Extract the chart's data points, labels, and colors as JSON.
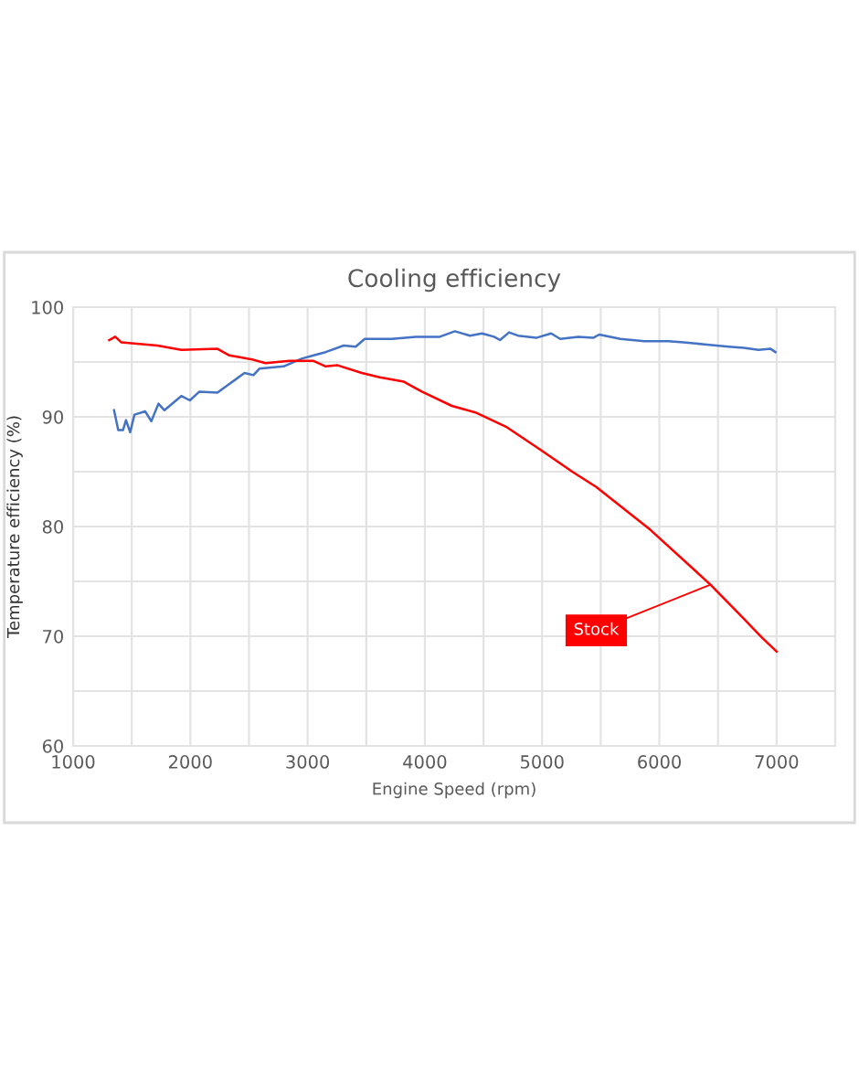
{
  "chart_data": {
    "type": "line",
    "title": "Cooling efficiency",
    "xlabel": "Engine Speed (rpm)",
    "ylabel": "Temperature efficiency (%)",
    "xlim": [
      1000,
      7500
    ],
    "ylim": [
      60,
      100
    ],
    "xticks": [
      1000,
      {
        "value": 1500,
        "label": null
      },
      2000,
      {
        "value": 2500,
        "label": null
      },
      3000,
      {
        "value": 3500,
        "label": null
      },
      4000,
      {
        "value": 4500,
        "label": null
      },
      5000,
      {
        "value": 5500,
        "label": null
      },
      6000,
      {
        "value": 6500,
        "label": null
      },
      7000,
      {
        "value": 7500,
        "label": null
      }
    ],
    "yticks": [
      60,
      {
        "value": 65,
        "label": null
      },
      70,
      {
        "value": 75,
        "label": null
      },
      80,
      {
        "value": 85,
        "label": null
      },
      90,
      {
        "value": 95,
        "label": null
      },
      100
    ],
    "grid": true,
    "legend": false,
    "marker": "none",
    "line_style": "solid",
    "series": [
      {
        "color": "#4472c4",
        "x": [
          1349,
          1385,
          1426,
          1451,
          1487,
          1523,
          1615,
          1667,
          1728,
          1779,
          1923,
          1996,
          2077,
          2231,
          2333,
          2462,
          2538,
          2590,
          2795,
          2949,
          3051,
          3154,
          3308,
          3410,
          3487,
          3718,
          3923,
          4128,
          4256,
          4385,
          4487,
          4590,
          4641,
          4718,
          4795,
          4949,
          5077,
          5154,
          5308,
          5436,
          5487,
          5667,
          5872,
          6077,
          6205,
          6385,
          6590,
          6718,
          6846,
          6949,
          6990
        ],
        "values": [
          90.6,
          88.8,
          88.8,
          89.7,
          88.6,
          90.2,
          90.5,
          89.6,
          91.2,
          90.6,
          91.9,
          91.5,
          92.3,
          92.2,
          93.0,
          94.0,
          93.8,
          94.4,
          94.6,
          95.3,
          95.6,
          95.9,
          96.5,
          96.4,
          97.1,
          97.1,
          97.3,
          97.3,
          97.8,
          97.4,
          97.6,
          97.3,
          97.0,
          97.7,
          97.4,
          97.2,
          97.6,
          97.1,
          97.3,
          97.2,
          97.5,
          97.1,
          96.9,
          96.9,
          96.8,
          96.6,
          96.4,
          96.3,
          96.1,
          96.2,
          95.9
        ]
      },
      {
        "name": "Stock",
        "color": "#ff0000",
        "x": [
          1308,
          1359,
          1410,
          1718,
          1923,
          2231,
          2333,
          2538,
          2641,
          2846,
          3051,
          3154,
          3256,
          3462,
          3615,
          3821,
          3974,
          4230,
          4431,
          4692,
          5000,
          5257,
          5462,
          5923,
          6436,
          6692,
          6872,
          7000
        ],
        "values": [
          97.0,
          97.3,
          96.8,
          96.5,
          96.1,
          96.2,
          95.6,
          95.2,
          94.9,
          95.1,
          95.1,
          94.6,
          94.7,
          94.0,
          93.6,
          93.2,
          92.3,
          91.0,
          90.4,
          89.1,
          86.9,
          85.0,
          83.6,
          79.7,
          74.7,
          71.9,
          69.9,
          68.6
        ]
      }
    ]
  }
}
